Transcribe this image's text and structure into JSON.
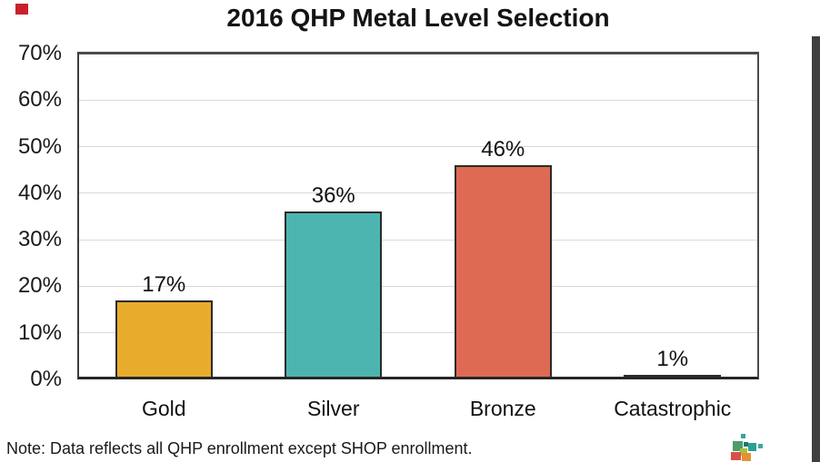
{
  "chart_data": {
    "type": "bar",
    "title": "2016 QHP Metal Level Selection",
    "categories": [
      "Gold",
      "Silver",
      "Bronze",
      "Catastrophic"
    ],
    "values": [
      17,
      36,
      46,
      1
    ],
    "value_labels": [
      "17%",
      "36%",
      "46%",
      "1%"
    ],
    "bar_colors": [
      "#E8AC2D",
      "#4CB5B0",
      "#DF6A53",
      "#968E73"
    ],
    "xlabel": "",
    "ylabel": "",
    "ylim": [
      0,
      70
    ],
    "ytick_step": 10,
    "ytick_labels": [
      "0%",
      "10%",
      "20%",
      "30%",
      "40%",
      "50%",
      "60%",
      "70%"
    ],
    "grid": true,
    "legend_position": "none"
  },
  "note": "Note: Data reflects all QHP enrollment except SHOP enrollment.",
  "decorations": {
    "corner_mark_color": "#C9202C",
    "window_edge_color": "#3F3F3F",
    "grid_color": "#d9d9d9",
    "logo_squares": [
      {
        "l": 14,
        "t": 4,
        "w": 5,
        "h": 5,
        "c": "#3BA3A0"
      },
      {
        "l": 5,
        "t": 12,
        "w": 11,
        "h": 11,
        "c": "#4D9E68"
      },
      {
        "l": 17,
        "t": 13,
        "w": 5,
        "h": 5,
        "c": "#1B7A70"
      },
      {
        "l": 22,
        "t": 14,
        "w": 9,
        "h": 9,
        "c": "#2E9F95"
      },
      {
        "l": 33,
        "t": 15,
        "w": 5,
        "h": 5,
        "c": "#43A89C"
      },
      {
        "l": 13,
        "t": 20,
        "w": 8,
        "h": 8,
        "c": "#A6C13D"
      },
      {
        "l": 3,
        "t": 24,
        "w": 11,
        "h": 9,
        "c": "#D8504A"
      },
      {
        "l": 15,
        "t": 25,
        "w": 10,
        "h": 9,
        "c": "#E49231"
      }
    ]
  }
}
